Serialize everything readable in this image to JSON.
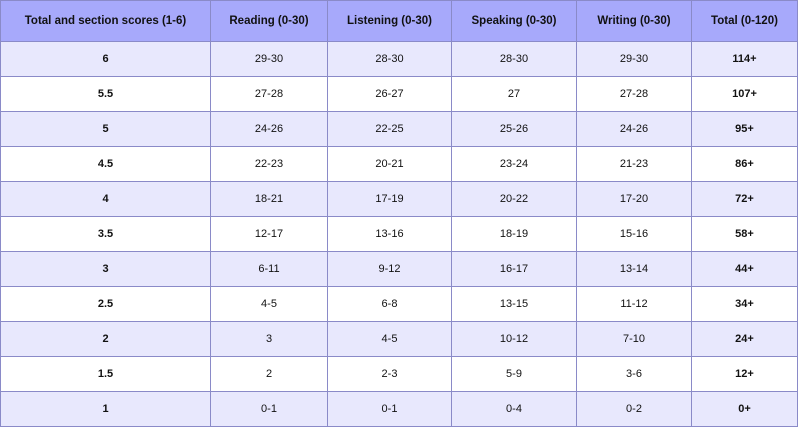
{
  "table": {
    "header": [
      "Total and section scores (1-6)",
      "Reading (0-30)",
      "Listening (0-30)",
      "Speaking (0-30)",
      "Writing (0-30)",
      "Total (0-120)"
    ],
    "rows": [
      [
        "6",
        "29-30",
        "28-30",
        "28-30",
        "29-30",
        "114+"
      ],
      [
        "5.5",
        "27-28",
        "26-27",
        "27",
        "27-28",
        "107+"
      ],
      [
        "5",
        "24-26",
        "22-25",
        "25-26",
        "24-26",
        "95+"
      ],
      [
        "4.5",
        "22-23",
        "20-21",
        "23-24",
        "21-23",
        "86+"
      ],
      [
        "4",
        "18-21",
        "17-19",
        "20-22",
        "17-20",
        "72+"
      ],
      [
        "3.5",
        "12-17",
        "13-16",
        "18-19",
        "15-16",
        "58+"
      ],
      [
        "3",
        "6-11",
        "9-12",
        "16-17",
        "13-14",
        "44+"
      ],
      [
        "2.5",
        "4-5",
        "6-8",
        "13-15",
        "11-12",
        "34+"
      ],
      [
        "2",
        "3",
        "4-5",
        "10-12",
        "7-10",
        "24+"
      ],
      [
        "1.5",
        "2",
        "2-3",
        "5-9",
        "3-6",
        "12+"
      ],
      [
        "1",
        "0-1",
        "0-1",
        "0-4",
        "0-2",
        "0+"
      ]
    ]
  }
}
